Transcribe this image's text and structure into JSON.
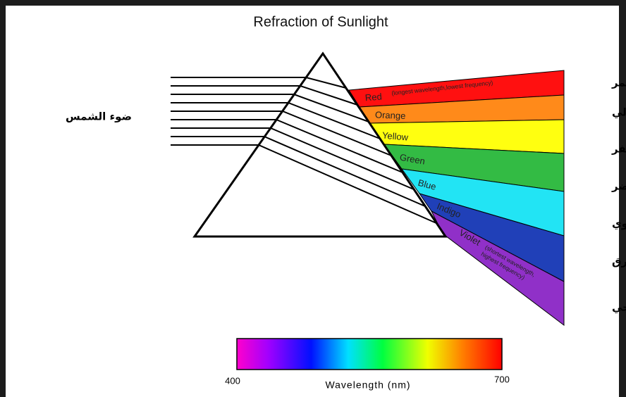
{
  "title": "Refraction of Sunlight",
  "sunlight_label": "ضوء الشمس",
  "bands": [
    {
      "name": "Red",
      "note": "(longest wavelength,lowest frequency)",
      "arabic": "أحمر"
    },
    {
      "name": "Orange",
      "arabic": "برتقالي"
    },
    {
      "name": "Yellow",
      "arabic": "أصفر"
    },
    {
      "name": "Green",
      "arabic": "أخضر"
    },
    {
      "name": "Blue",
      "arabic": "سماوي"
    },
    {
      "name": "Indigo",
      "arabic": "أزرق"
    },
    {
      "name": "Violet",
      "note_lines": [
        "(shortest wavelength,",
        "highest frequency)"
      ],
      "arabic": "بنفسجي"
    }
  ],
  "scale": {
    "min": 400,
    "max": 700,
    "label": "Wavelength (nm)"
  }
}
